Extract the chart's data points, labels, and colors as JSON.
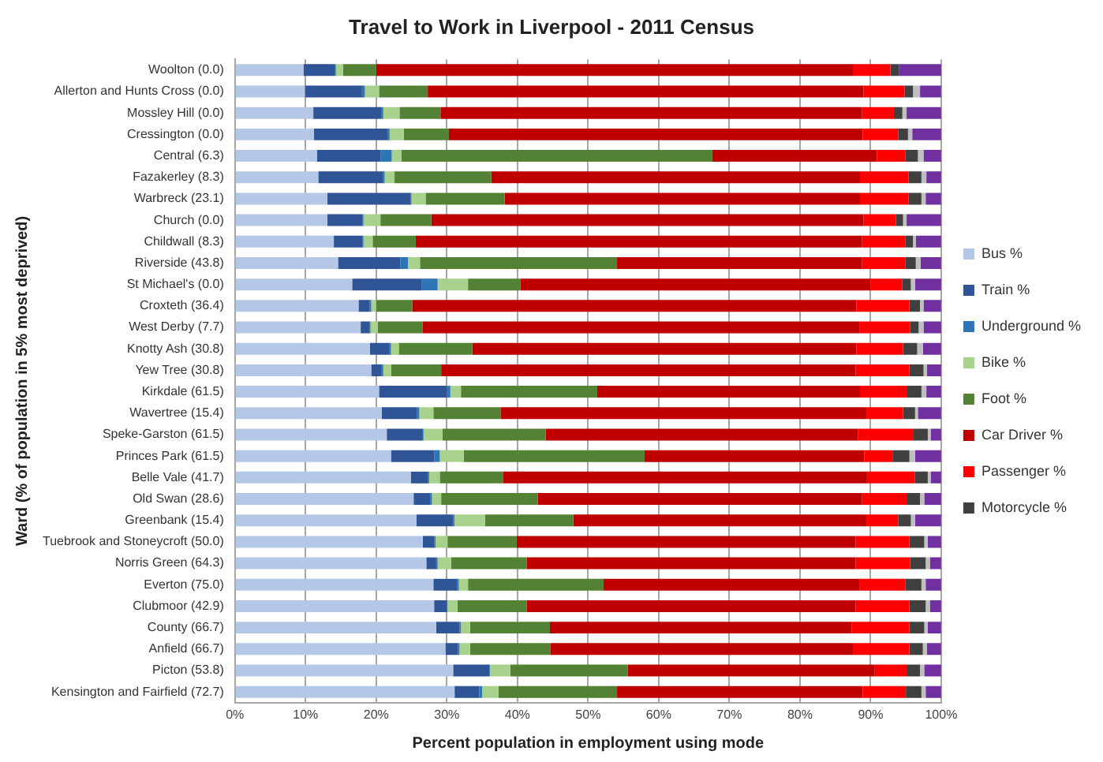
{
  "chart_data": {
    "type": "bar",
    "orientation": "horizontal",
    "stacked": true,
    "title": "Travel to Work in Liverpool - 2011 Census",
    "xlabel": "Percent population in employment using mode",
    "ylabel": "Ward (% of population in 5% most deprived)",
    "categories": [
      "Woolton (0.0)",
      "Allerton and Hunts Cross (0.0)",
      "Mossley Hill (0.0)",
      "Cressington (0.0)",
      "Central (6.3)",
      "Fazakerley (8.3)",
      "Warbreck (23.1)",
      "Church (0.0)",
      "Childwall (8.3)",
      "Riverside (43.8)",
      "St Michael's (0.0)",
      "Croxteth (36.4)",
      "West Derby (7.7)",
      "Knotty Ash (30.8)",
      "Yew Tree (30.8)",
      "Kirkdale (61.5)",
      "Wavertree (15.4)",
      "Speke-Garston (61.5)",
      "Princes Park (61.5)",
      "Belle Vale (41.7)",
      "Old Swan (28.6)",
      "Greenbank (15.4)",
      "Tuebrook and Stoneycroft (50.0)",
      "Norris Green (64.3)",
      "Everton (75.0)",
      "Clubmoor (42.9)",
      "County (66.7)",
      "Anfield (66.7)",
      "Picton (53.8)",
      "Kensington and Fairfield (72.7)"
    ],
    "series": [
      {
        "name": "Bus %",
        "color": "#b4c7e7",
        "values": [
          9.7,
          9.9,
          11.1,
          11.2,
          11.6,
          11.8,
          13.1,
          13.1,
          14.0,
          14.6,
          16.6,
          17.5,
          17.8,
          19.1,
          19.3,
          20.4,
          20.8,
          21.5,
          22.1,
          24.9,
          25.3,
          25.7,
          26.6,
          27.1,
          28.1,
          28.2,
          28.5,
          29.8,
          30.9,
          31.1
        ]
      },
      {
        "name": "Train %",
        "color": "#2f5597",
        "values": [
          4.4,
          8.1,
          9.6,
          10.4,
          9.0,
          9.2,
          11.8,
          5.0,
          4.1,
          8.8,
          9.8,
          1.6,
          1.3,
          2.8,
          1.4,
          9.6,
          5.0,
          5.1,
          6.1,
          2.4,
          2.4,
          5.2,
          1.6,
          1.4,
          3.4,
          1.8,
          3.3,
          1.8,
          5.1,
          3.5
        ]
      },
      {
        "name": "Underground %",
        "color": "#2e75b6",
        "values": [
          0.2,
          0.4,
          0.3,
          0.3,
          1.6,
          0.2,
          0.1,
          0.1,
          0.1,
          1.1,
          2.3,
          0.2,
          0.1,
          0.2,
          0.3,
          0.5,
          0.3,
          0.1,
          0.8,
          0.2,
          0.2,
          0.2,
          0.2,
          0.2,
          0.2,
          0.1,
          0.2,
          0.2,
          0.1,
          0.4
        ]
      },
      {
        "name": "Bike %",
        "color": "#a9d18e",
        "values": [
          1.0,
          2.0,
          2.3,
          2.0,
          1.4,
          1.4,
          2.0,
          2.4,
          1.3,
          1.7,
          4.3,
          0.7,
          1.0,
          1.1,
          1.1,
          1.5,
          2.0,
          2.7,
          3.4,
          1.5,
          1.3,
          4.3,
          1.7,
          1.9,
          1.3,
          1.4,
          1.3,
          1.5,
          2.9,
          2.3
        ]
      },
      {
        "name": "Foot %",
        "color": "#548235",
        "values": [
          4.7,
          6.9,
          5.8,
          6.4,
          44.0,
          13.7,
          11.2,
          7.2,
          6.1,
          27.9,
          7.4,
          5.1,
          6.4,
          10.4,
          7.1,
          19.3,
          9.5,
          14.6,
          25.6,
          9.0,
          13.7,
          12.5,
          9.8,
          10.7,
          19.2,
          9.8,
          11.3,
          11.4,
          16.6,
          16.8
        ]
      },
      {
        "name": "Car Driver %",
        "color": "#c00000",
        "values": [
          67.6,
          61.7,
          59.7,
          58.6,
          23.3,
          52.2,
          50.3,
          61.2,
          63.2,
          34.7,
          49.6,
          62.9,
          61.8,
          54.4,
          58.7,
          37.2,
          51.8,
          44.2,
          31.1,
          51.5,
          45.9,
          41.5,
          48.0,
          46.6,
          36.2,
          46.6,
          42.7,
          42.8,
          35.0,
          34.8
        ]
      },
      {
        "name": "Passenger %",
        "color": "#ff0000",
        "values": [
          5.2,
          5.8,
          4.5,
          5.0,
          4.0,
          6.9,
          6.9,
          4.6,
          6.1,
          6.1,
          4.5,
          7.5,
          7.2,
          6.6,
          7.6,
          6.6,
          5.2,
          7.8,
          4.0,
          6.8,
          6.3,
          4.5,
          7.6,
          7.7,
          6.5,
          7.6,
          8.2,
          8.0,
          4.5,
          6.1
        ]
      },
      {
        "name": "Motorcycle %",
        "color": "#404040",
        "values": [
          1.2,
          1.2,
          1.2,
          1.4,
          1.8,
          1.8,
          1.8,
          1.0,
          1.1,
          1.5,
          1.2,
          1.5,
          1.2,
          2.0,
          2.0,
          2.1,
          1.7,
          2.1,
          2.4,
          1.8,
          1.9,
          1.8,
          2.1,
          2.2,
          2.3,
          2.3,
          2.1,
          1.9,
          1.9,
          2.2
        ]
      },
      {
        "color": "#bfbfbf",
        "values": [
          null,
          1.0,
          0.6,
          0.6,
          0.8,
          0.7,
          0.6,
          0.5,
          0.4,
          0.7,
          0.6,
          0.5,
          0.7,
          0.8,
          0.5,
          0.7,
          0.4,
          0.4,
          0.8,
          0.4,
          0.6,
          0.6,
          0.5,
          0.6,
          0.6,
          0.6,
          0.5,
          0.6,
          0.6,
          0.6
        ]
      },
      {
        "color": "#7030a0",
        "values": [
          6.1,
          3.0,
          4.9,
          4.1,
          2.5,
          2.1,
          2.2,
          4.9,
          3.6,
          2.9,
          3.7,
          2.5,
          2.5,
          2.6,
          2.0,
          2.1,
          3.3,
          1.5,
          3.7,
          1.5,
          2.4,
          3.7,
          1.9,
          1.6,
          2.2,
          1.6,
          1.9,
          2.0,
          2.4,
          2.2
        ]
      }
    ],
    "xlim": [
      0,
      100
    ],
    "xticks": [
      {
        "value": 0,
        "label": "0%"
      },
      {
        "value": 10,
        "label": "10%"
      },
      {
        "value": 20,
        "label": "20%"
      },
      {
        "value": 30,
        "label": "30%"
      },
      {
        "value": 40,
        "label": "40%"
      },
      {
        "value": 50,
        "label": "50%"
      },
      {
        "value": 60,
        "label": "60%"
      },
      {
        "value": 70,
        "label": "70%"
      },
      {
        "value": 80,
        "label": "80%"
      },
      {
        "value": 90,
        "label": "90%"
      },
      {
        "value": 100,
        "label": "100%"
      }
    ],
    "grid": "x",
    "legend": "right"
  }
}
